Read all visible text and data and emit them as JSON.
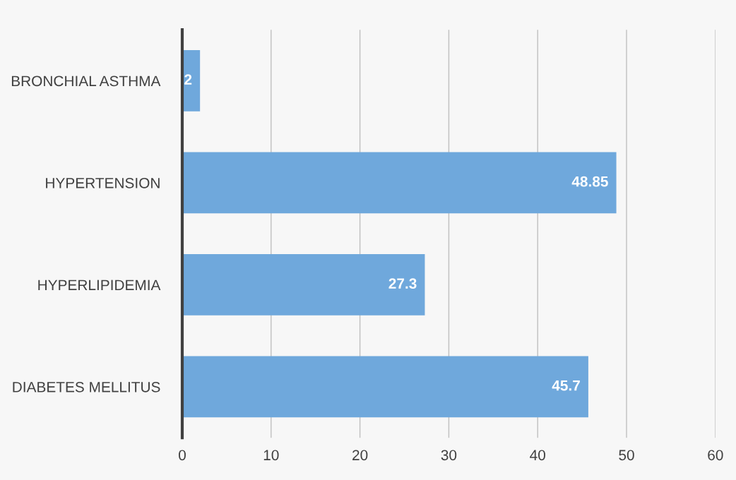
{
  "chart_data": {
    "type": "bar",
    "orientation": "horizontal",
    "categories": [
      "BRONCHIAL ASTHMA",
      "HYPERTENSION",
      "HYPERLIPIDEMIA",
      "DIABETES MELLITUS"
    ],
    "values": [
      2,
      48.85,
      27.3,
      45.7
    ],
    "color": "#6fa8dc",
    "xlim": [
      0,
      60
    ],
    "xticks": [
      0,
      10,
      20,
      30,
      40,
      50,
      60
    ],
    "grid": "x",
    "data_labels": true
  }
}
